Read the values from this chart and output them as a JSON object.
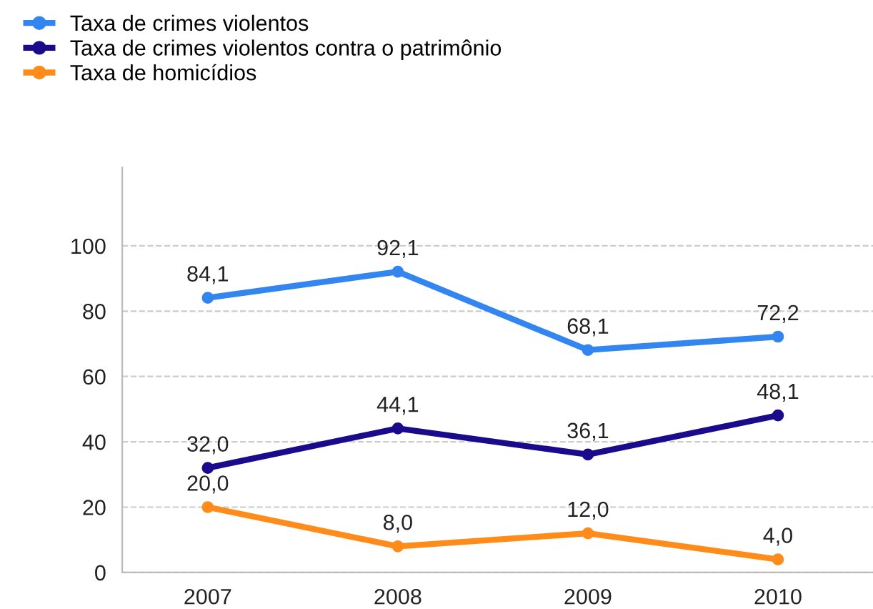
{
  "chart_data": {
    "type": "line",
    "categories": [
      "2007",
      "2008",
      "2009",
      "2010"
    ],
    "series": [
      {
        "name": "Taxa de crimes violentos",
        "color": "#3385f0",
        "values": [
          84.1,
          92.1,
          68.1,
          72.2
        ],
        "value_labels": [
          "84,1",
          "92,1",
          "68,1",
          "72,2"
        ]
      },
      {
        "name": "Taxa de crimes violentos contra o patrimônio",
        "color": "#1a0a8c",
        "values": [
          32.0,
          44.1,
          36.1,
          48.1
        ],
        "value_labels": [
          "32,0",
          "44,1",
          "36,1",
          "48,1"
        ]
      },
      {
        "name": "Taxa de homicídios",
        "color": "#ff8c1a",
        "values": [
          20.0,
          8.0,
          12.0,
          4.0
        ],
        "value_labels": [
          "20,0",
          "8,0",
          "12,0",
          "4,0"
        ]
      }
    ],
    "ylim": [
      0,
      124
    ],
    "yticks": [
      0,
      20,
      40,
      60,
      80,
      100
    ],
    "grid": "y",
    "legend": "top left",
    "marker": "circle",
    "line_style": "solid"
  }
}
